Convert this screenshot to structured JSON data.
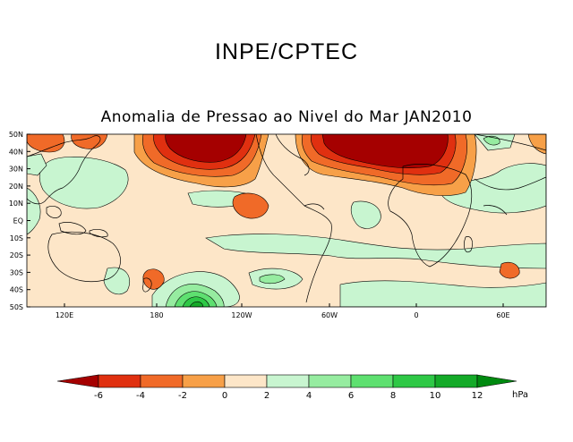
{
  "header": {
    "title": "INPE/CPTEC",
    "map_title": "Anomalia de Pressao ao Nivel do Mar JAN2010"
  },
  "map": {
    "lat_labels": [
      "50N",
      "40N",
      "30N",
      "20N",
      "10N",
      "EQ",
      "10S",
      "20S",
      "30S",
      "40S",
      "50S"
    ],
    "lon_labels": [
      "120E",
      "180",
      "120W",
      "60W",
      "0",
      "60E"
    ]
  },
  "colorbar": {
    "unit": "hPa",
    "labels": [
      "-6",
      "-4",
      "-2",
      "0",
      "2",
      "4",
      "6",
      "8",
      "10",
      "12"
    ],
    "colors": [
      "#a50000",
      "#e03010",
      "#f06a28",
      "#f7a048",
      "#fde6c8",
      "#ffffff",
      "#c8f5d0",
      "#96eca0",
      "#5ee070",
      "#2ec846",
      "#14aa28",
      "#008a10"
    ]
  }
}
